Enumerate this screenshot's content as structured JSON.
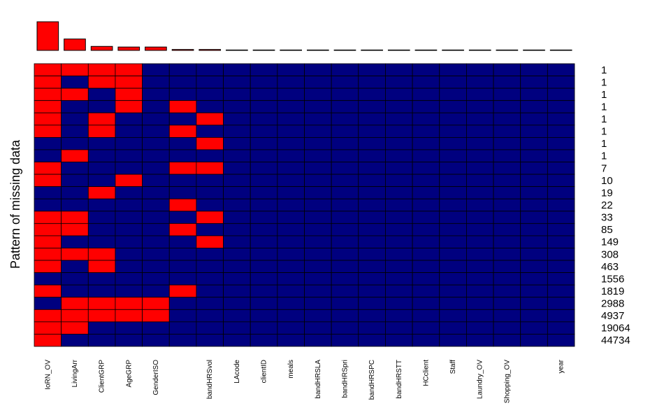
{
  "chart_data": {
    "type": "heatmap",
    "ylabel": "Pattern of missing data",
    "columns": [
      "IoRN_OV",
      "LivingArr",
      "ClientGRP",
      "AgeGRP",
      "GenderISO",
      "",
      "bandHRSvol",
      "LAcode",
      "clientID",
      "meals",
      "bandHRSLA",
      "bandHRSpri",
      "bandHRSPC",
      "bandHRSTT",
      "HCclient",
      "Staff",
      "Laundry_OV",
      "Shopping_OV",
      "",
      "year"
    ],
    "column_missing_fraction": [
      0.93,
      0.37,
      0.13,
      0.11,
      0.11,
      0.03,
      0.03,
      0,
      0,
      0,
      0,
      0,
      0,
      0,
      0,
      0,
      0,
      0,
      0,
      0
    ],
    "pattern_counts": [
      "1",
      "1",
      "1",
      "1",
      "1",
      "1",
      "1",
      "1",
      "7",
      "10",
      "19",
      "22",
      "33",
      "85",
      "149",
      "308",
      "463",
      "1556",
      "1819",
      "2988",
      "4937",
      "19064",
      "44734"
    ],
    "patterns": [
      [
        1,
        1,
        1,
        1,
        0,
        0,
        0,
        0,
        0,
        0,
        0,
        0,
        0,
        0,
        0,
        0,
        0,
        0,
        0,
        0
      ],
      [
        1,
        0,
        1,
        1,
        0,
        0,
        0,
        0,
        0,
        0,
        0,
        0,
        0,
        0,
        0,
        0,
        0,
        0,
        0,
        0
      ],
      [
        1,
        1,
        0,
        1,
        0,
        0,
        0,
        0,
        0,
        0,
        0,
        0,
        0,
        0,
        0,
        0,
        0,
        0,
        0,
        0
      ],
      [
        1,
        0,
        0,
        1,
        0,
        1,
        0,
        0,
        0,
        0,
        0,
        0,
        0,
        0,
        0,
        0,
        0,
        0,
        0,
        0
      ],
      [
        1,
        0,
        1,
        0,
        0,
        0,
        1,
        0,
        0,
        0,
        0,
        0,
        0,
        0,
        0,
        0,
        0,
        0,
        0,
        0
      ],
      [
        1,
        0,
        1,
        0,
        0,
        1,
        0,
        0,
        0,
        0,
        0,
        0,
        0,
        0,
        0,
        0,
        0,
        0,
        0,
        0
      ],
      [
        0,
        0,
        0,
        0,
        0,
        0,
        1,
        0,
        0,
        0,
        0,
        0,
        0,
        0,
        0,
        0,
        0,
        0,
        0,
        0
      ],
      [
        0,
        1,
        0,
        0,
        0,
        0,
        0,
        0,
        0,
        0,
        0,
        0,
        0,
        0,
        0,
        0,
        0,
        0,
        0,
        0
      ],
      [
        1,
        0,
        0,
        0,
        0,
        1,
        1,
        0,
        0,
        0,
        0,
        0,
        0,
        0,
        0,
        0,
        0,
        0,
        0,
        0
      ],
      [
        1,
        0,
        0,
        1,
        0,
        0,
        0,
        0,
        0,
        0,
        0,
        0,
        0,
        0,
        0,
        0,
        0,
        0,
        0,
        0
      ],
      [
        0,
        0,
        1,
        0,
        0,
        0,
        0,
        0,
        0,
        0,
        0,
        0,
        0,
        0,
        0,
        0,
        0,
        0,
        0,
        0
      ],
      [
        0,
        0,
        0,
        0,
        0,
        1,
        0,
        0,
        0,
        0,
        0,
        0,
        0,
        0,
        0,
        0,
        0,
        0,
        0,
        0
      ],
      [
        1,
        1,
        0,
        0,
        0,
        0,
        1,
        0,
        0,
        0,
        0,
        0,
        0,
        0,
        0,
        0,
        0,
        0,
        0,
        0
      ],
      [
        1,
        1,
        0,
        0,
        0,
        1,
        0,
        0,
        0,
        0,
        0,
        0,
        0,
        0,
        0,
        0,
        0,
        0,
        0,
        0
      ],
      [
        1,
        0,
        0,
        0,
        0,
        0,
        1,
        0,
        0,
        0,
        0,
        0,
        0,
        0,
        0,
        0,
        0,
        0,
        0,
        0
      ],
      [
        1,
        1,
        1,
        0,
        0,
        0,
        0,
        0,
        0,
        0,
        0,
        0,
        0,
        0,
        0,
        0,
        0,
        0,
        0,
        0
      ],
      [
        1,
        0,
        1,
        0,
        0,
        0,
        0,
        0,
        0,
        0,
        0,
        0,
        0,
        0,
        0,
        0,
        0,
        0,
        0,
        0
      ],
      [
        0,
        0,
        0,
        0,
        0,
        0,
        0,
        0,
        0,
        0,
        0,
        0,
        0,
        0,
        0,
        0,
        0,
        0,
        0,
        0
      ],
      [
        1,
        0,
        0,
        0,
        0,
        1,
        0,
        0,
        0,
        0,
        0,
        0,
        0,
        0,
        0,
        0,
        0,
        0,
        0,
        0
      ],
      [
        0,
        1,
        1,
        1,
        1,
        0,
        0,
        0,
        0,
        0,
        0,
        0,
        0,
        0,
        0,
        0,
        0,
        0,
        0,
        0
      ],
      [
        1,
        1,
        1,
        1,
        1,
        0,
        0,
        0,
        0,
        0,
        0,
        0,
        0,
        0,
        0,
        0,
        0,
        0,
        0,
        0
      ],
      [
        1,
        1,
        0,
        0,
        0,
        0,
        0,
        0,
        0,
        0,
        0,
        0,
        0,
        0,
        0,
        0,
        0,
        0,
        0,
        0
      ],
      [
        1,
        0,
        0,
        0,
        0,
        0,
        0,
        0,
        0,
        0,
        0,
        0,
        0,
        0,
        0,
        0,
        0,
        0,
        0,
        0
      ]
    ],
    "colors": {
      "missing": "#ff0000",
      "observed": "#00007f"
    }
  }
}
